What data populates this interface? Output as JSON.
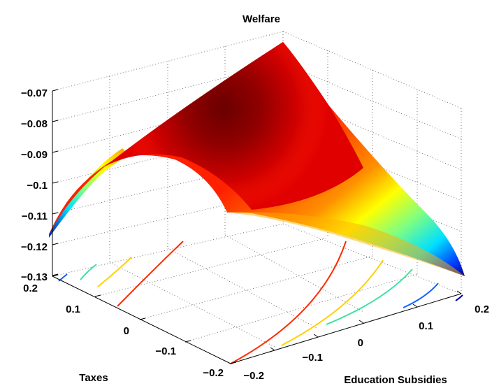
{
  "chart_data": {
    "type": "surface",
    "title": "Welfare",
    "xlabel": "Taxes",
    "ylabel": "Education Subsidies",
    "zlabel": "",
    "xlim": [
      -0.2,
      0.2
    ],
    "ylim": [
      -0.2,
      0.2
    ],
    "zlim": [
      -0.13,
      -0.07
    ],
    "x_ticks": [
      "0.2",
      "0.1",
      "0",
      "−0.1",
      "−0.2"
    ],
    "y_ticks": [
      "−0.2",
      "−0.1",
      "0",
      "0.1",
      "0.2"
    ],
    "z_ticks": [
      "−0.07",
      "−0.08",
      "−0.09",
      "−0.1",
      "−0.11",
      "−0.12",
      "−0.13"
    ],
    "grid": true,
    "colormap": "jet",
    "colors": {
      "high": "#800000",
      "low": "#00008f"
    },
    "surface_samples": [
      {
        "taxes": 0.2,
        "education_subsidies": 0.2,
        "welfare": -0.072
      },
      {
        "taxes": 0.2,
        "education_subsidies": -0.2,
        "welfare": -0.116
      },
      {
        "taxes": -0.2,
        "education_subsidies": 0.2,
        "welfare": -0.127
      },
      {
        "taxes": -0.2,
        "education_subsidies": -0.2,
        "welfare": -0.111
      },
      {
        "taxes": 0.0,
        "education_subsidies": 0.0,
        "welfare": -0.075
      }
    ],
    "contour_levels": [
      -0.08,
      -0.09,
      -0.1,
      -0.11,
      -0.12
    ]
  }
}
